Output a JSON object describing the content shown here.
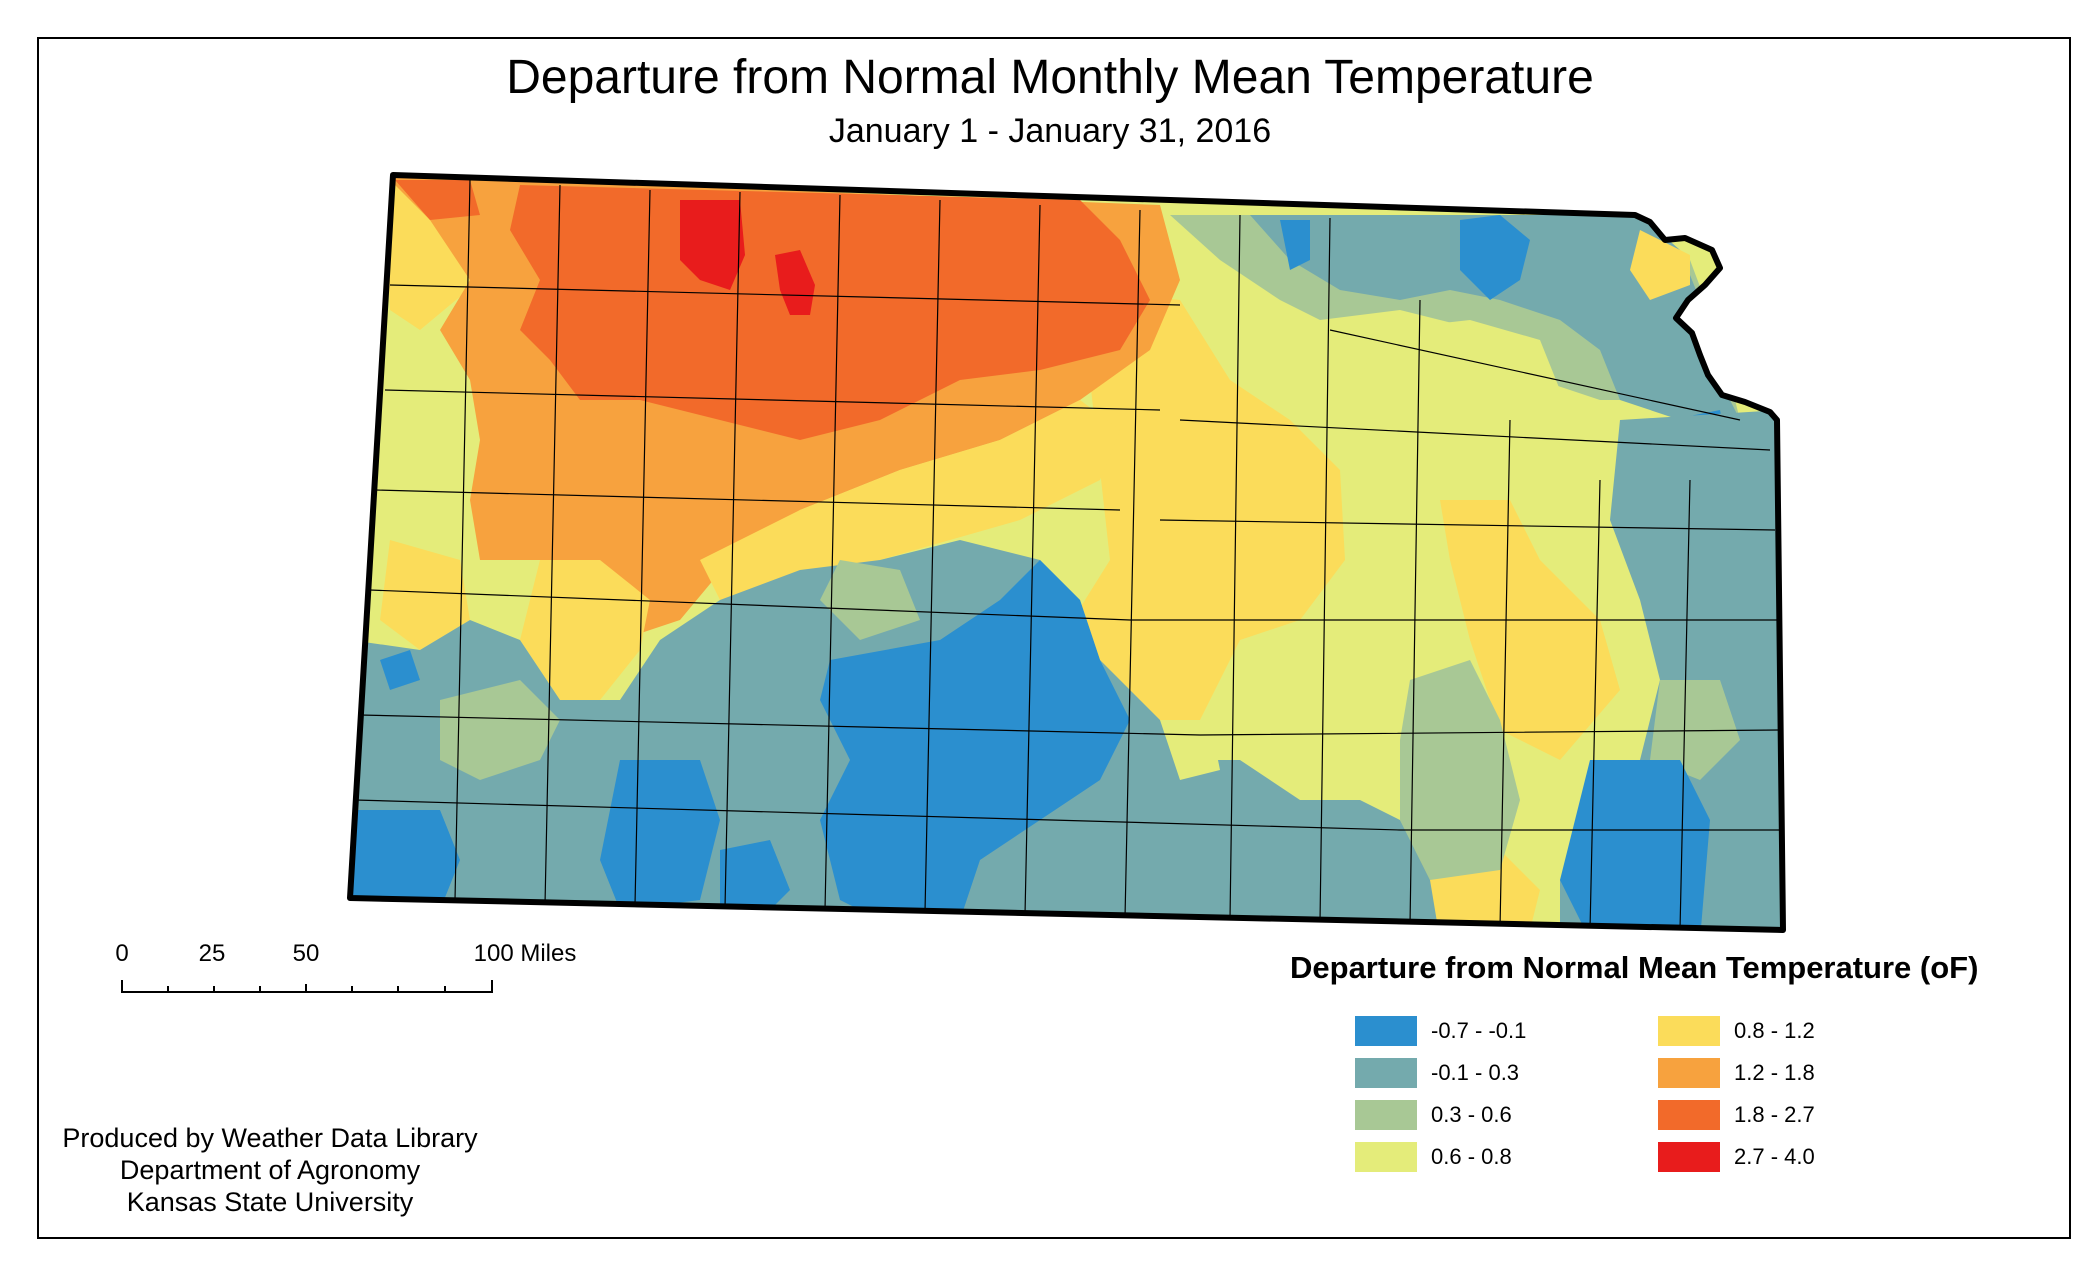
{
  "title": "Departure from Normal Monthly Mean Temperature",
  "subtitle": "January 1 - January 31, 2016",
  "scale_bar": {
    "labels": [
      "0",
      "25",
      "50",
      "100 Miles"
    ]
  },
  "credits": {
    "line1": "Produced by Weather Data Library",
    "line2": "Department of Agronomy",
    "line3": "Kansas State University"
  },
  "legend": {
    "title": "Departure from Normal Mean Temperature (oF)",
    "items": [
      {
        "label": "-0.7 - -0.1",
        "color": "#2b8fcf"
      },
      {
        "label": "-0.1 - 0.3",
        "color": "#74aaad"
      },
      {
        "label": "0.3 - 0.6",
        "color": "#a8c895"
      },
      {
        "label": "0.6 - 0.8",
        "color": "#e4ec7a"
      },
      {
        "label": "0.8 - 1.2",
        "color": "#fbdc5a"
      },
      {
        "label": "1.2 - 1.8",
        "color": "#f7a23e"
      },
      {
        "label": "1.8 - 2.7",
        "color": "#f26a2a"
      },
      {
        "label": "2.7 - 4.0",
        "color": "#e81c1c"
      }
    ]
  }
}
